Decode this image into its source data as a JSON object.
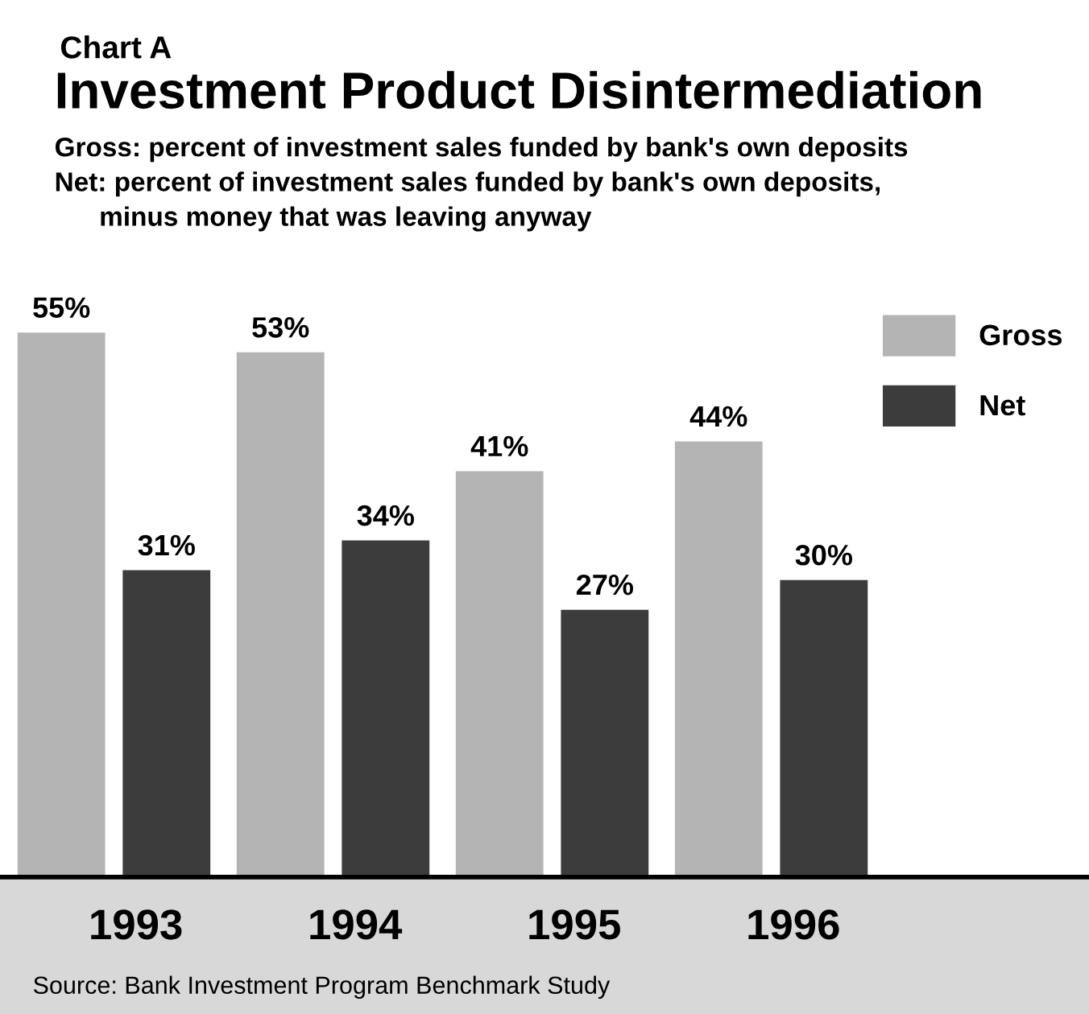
{
  "chart_data": {
    "type": "bar",
    "title": "Investment Product Disintermediation",
    "subtitle": "Gross: percent of investment sales funded by bank's own deposits\nNet: percent of investment sales funded by bank's own deposits,\n      minus money that was leaving anyway",
    "annotations": [
      "Chart A",
      "Source: Bank Investment Program Benchmark Study"
    ],
    "categories": [
      "1993",
      "1994",
      "1995",
      "1996"
    ],
    "series": [
      {
        "name": "Gross",
        "color": "#b4b4b4",
        "values": [
          55,
          53,
          41,
          44
        ],
        "value_labels": [
          "55%",
          "53%",
          "41%",
          "44%"
        ]
      },
      {
        "name": "Net",
        "color": "#3c3c3c",
        "values": [
          31,
          34,
          27,
          30
        ],
        "value_labels": [
          "31%",
          "34%",
          "27%",
          "30%"
        ]
      }
    ],
    "legend": "top right",
    "grid": false
  }
}
